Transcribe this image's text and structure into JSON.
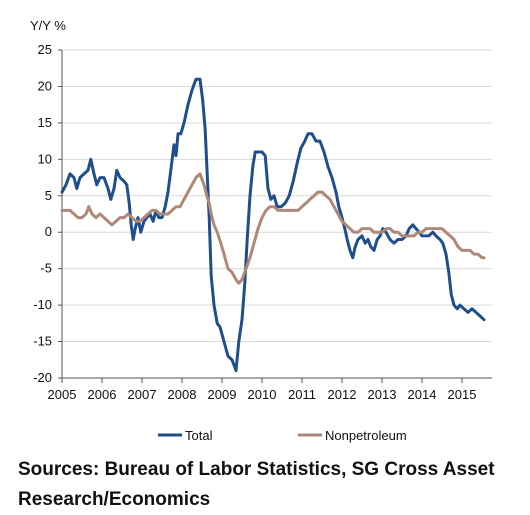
{
  "chart_data": {
    "type": "line",
    "y_unit_label": "Y/Y %",
    "ylim": [
      -20,
      25
    ],
    "y_ticks": [
      25,
      20,
      15,
      10,
      5,
      0,
      -5,
      -10,
      -15,
      -20
    ],
    "x_range": [
      2005,
      2015.75
    ],
    "x_ticks": [
      "2005",
      "2006",
      "2007",
      "2008",
      "2009",
      "2010",
      "2011",
      "2012",
      "2013",
      "2014",
      "2015"
    ],
    "grid": true,
    "legend_position": "bottom",
    "series": [
      {
        "name": "Total",
        "color": "#1f4e8c",
        "points": [
          [
            2005.0,
            5.5
          ],
          [
            2005.1,
            6.5
          ],
          [
            2005.2,
            8.0
          ],
          [
            2005.3,
            7.5
          ],
          [
            2005.37,
            6.0
          ],
          [
            2005.45,
            7.5
          ],
          [
            2005.55,
            8.0
          ],
          [
            2005.65,
            8.5
          ],
          [
            2005.72,
            10.0
          ],
          [
            2005.8,
            8.0
          ],
          [
            2005.87,
            6.5
          ],
          [
            2005.95,
            7.5
          ],
          [
            2006.05,
            7.5
          ],
          [
            2006.15,
            6.0
          ],
          [
            2006.22,
            4.5
          ],
          [
            2006.3,
            6.0
          ],
          [
            2006.37,
            8.5
          ],
          [
            2006.45,
            7.5
          ],
          [
            2006.55,
            7.0
          ],
          [
            2006.62,
            6.5
          ],
          [
            2006.68,
            4.0
          ],
          [
            2006.73,
            1.0
          ],
          [
            2006.78,
            -1.0
          ],
          [
            2006.83,
            0.5
          ],
          [
            2006.9,
            2.0
          ],
          [
            2006.97,
            0.0
          ],
          [
            2007.05,
            1.5
          ],
          [
            2007.12,
            2.0
          ],
          [
            2007.2,
            2.5
          ],
          [
            2007.28,
            1.5
          ],
          [
            2007.35,
            3.0
          ],
          [
            2007.42,
            2.0
          ],
          [
            2007.5,
            2.0
          ],
          [
            2007.58,
            3.5
          ],
          [
            2007.65,
            5.5
          ],
          [
            2007.72,
            8.5
          ],
          [
            2007.8,
            12.0
          ],
          [
            2007.85,
            10.5
          ],
          [
            2007.9,
            13.5
          ],
          [
            2007.97,
            13.5
          ],
          [
            2008.05,
            15.0
          ],
          [
            2008.15,
            17.5
          ],
          [
            2008.25,
            19.5
          ],
          [
            2008.35,
            21.0
          ],
          [
            2008.45,
            21.0
          ],
          [
            2008.52,
            18.0
          ],
          [
            2008.58,
            14.0
          ],
          [
            2008.63,
            8.0
          ],
          [
            2008.68,
            2.0
          ],
          [
            2008.73,
            -6.0
          ],
          [
            2008.8,
            -10.0
          ],
          [
            2008.88,
            -12.5
          ],
          [
            2008.95,
            -13.0
          ],
          [
            2009.05,
            -15.0
          ],
          [
            2009.15,
            -17.0
          ],
          [
            2009.25,
            -17.5
          ],
          [
            2009.32,
            -18.5
          ],
          [
            2009.35,
            -19.0
          ],
          [
            2009.42,
            -15.0
          ],
          [
            2009.5,
            -12.0
          ],
          [
            2009.57,
            -7.0
          ],
          [
            2009.63,
            -1.0
          ],
          [
            2009.7,
            5.0
          ],
          [
            2009.77,
            9.0
          ],
          [
            2009.83,
            11.0
          ],
          [
            2009.92,
            11.0
          ],
          [
            2010.0,
            11.0
          ],
          [
            2010.08,
            10.5
          ],
          [
            2010.15,
            6.0
          ],
          [
            2010.22,
            4.5
          ],
          [
            2010.3,
            5.0
          ],
          [
            2010.38,
            3.5
          ],
          [
            2010.48,
            3.5
          ],
          [
            2010.58,
            4.0
          ],
          [
            2010.68,
            5.0
          ],
          [
            2010.78,
            7.0
          ],
          [
            2010.88,
            9.5
          ],
          [
            2010.97,
            11.5
          ],
          [
            2011.07,
            12.5
          ],
          [
            2011.15,
            13.5
          ],
          [
            2011.25,
            13.5
          ],
          [
            2011.35,
            12.5
          ],
          [
            2011.45,
            12.5
          ],
          [
            2011.55,
            11.0
          ],
          [
            2011.65,
            9.0
          ],
          [
            2011.75,
            7.5
          ],
          [
            2011.85,
            5.5
          ],
          [
            2011.92,
            3.5
          ],
          [
            2012.0,
            2.0
          ],
          [
            2012.07,
            0.5
          ],
          [
            2012.13,
            -1.0
          ],
          [
            2012.2,
            -2.5
          ],
          [
            2012.27,
            -3.5
          ],
          [
            2012.33,
            -2.0
          ],
          [
            2012.4,
            -1.0
          ],
          [
            2012.5,
            -0.5
          ],
          [
            2012.58,
            -1.5
          ],
          [
            2012.65,
            -1.0
          ],
          [
            2012.72,
            -2.0
          ],
          [
            2012.8,
            -2.5
          ],
          [
            2012.88,
            -1.0
          ],
          [
            2012.95,
            -0.5
          ],
          [
            2013.02,
            0.5
          ],
          [
            2013.1,
            0.0
          ],
          [
            2013.2,
            -1.0
          ],
          [
            2013.3,
            -1.5
          ],
          [
            2013.4,
            -1.0
          ],
          [
            2013.5,
            -1.0
          ],
          [
            2013.6,
            -0.5
          ],
          [
            2013.68,
            0.5
          ],
          [
            2013.77,
            1.0
          ],
          [
            2013.85,
            0.5
          ],
          [
            2013.93,
            0.0
          ],
          [
            2014.0,
            -0.5
          ],
          [
            2014.08,
            -0.5
          ],
          [
            2014.17,
            -0.5
          ],
          [
            2014.27,
            0.0
          ],
          [
            2014.35,
            -0.5
          ],
          [
            2014.45,
            -1.0
          ],
          [
            2014.52,
            -1.5
          ],
          [
            2014.6,
            -3.0
          ],
          [
            2014.67,
            -5.5
          ],
          [
            2014.73,
            -8.5
          ],
          [
            2014.8,
            -10.0
          ],
          [
            2014.88,
            -10.5
          ],
          [
            2014.95,
            -10.0
          ],
          [
            2015.05,
            -10.5
          ],
          [
            2015.15,
            -11.0
          ],
          [
            2015.25,
            -10.5
          ],
          [
            2015.35,
            -11.0
          ],
          [
            2015.45,
            -11.5
          ],
          [
            2015.55,
            -12.0
          ]
        ]
      },
      {
        "name": "Nonpetroleum",
        "color": "#b08878",
        "points": [
          [
            2005.0,
            3.0
          ],
          [
            2005.1,
            3.0
          ],
          [
            2005.2,
            3.0
          ],
          [
            2005.3,
            2.5
          ],
          [
            2005.4,
            2.0
          ],
          [
            2005.5,
            2.0
          ],
          [
            2005.6,
            2.5
          ],
          [
            2005.67,
            3.5
          ],
          [
            2005.75,
            2.5
          ],
          [
            2005.85,
            2.0
          ],
          [
            2005.95,
            2.5
          ],
          [
            2006.05,
            2.0
          ],
          [
            2006.15,
            1.5
          ],
          [
            2006.25,
            1.0
          ],
          [
            2006.35,
            1.5
          ],
          [
            2006.45,
            2.0
          ],
          [
            2006.55,
            2.0
          ],
          [
            2006.65,
            2.5
          ],
          [
            2006.75,
            2.0
          ],
          [
            2006.85,
            1.5
          ],
          [
            2006.95,
            1.5
          ],
          [
            2007.05,
            2.0
          ],
          [
            2007.15,
            2.5
          ],
          [
            2007.25,
            3.0
          ],
          [
            2007.35,
            3.0
          ],
          [
            2007.45,
            2.5
          ],
          [
            2007.55,
            2.5
          ],
          [
            2007.65,
            2.5
          ],
          [
            2007.75,
            3.0
          ],
          [
            2007.85,
            3.5
          ],
          [
            2007.95,
            3.5
          ],
          [
            2008.05,
            4.5
          ],
          [
            2008.15,
            5.5
          ],
          [
            2008.25,
            6.5
          ],
          [
            2008.35,
            7.5
          ],
          [
            2008.45,
            8.0
          ],
          [
            2008.55,
            6.5
          ],
          [
            2008.62,
            5.0
          ],
          [
            2008.68,
            4.0
          ],
          [
            2008.73,
            2.5
          ],
          [
            2008.8,
            1.0
          ],
          [
            2008.88,
            0.0
          ],
          [
            2008.97,
            -1.5
          ],
          [
            2009.05,
            -3.0
          ],
          [
            2009.15,
            -5.0
          ],
          [
            2009.25,
            -5.5
          ],
          [
            2009.35,
            -6.5
          ],
          [
            2009.42,
            -7.0
          ],
          [
            2009.5,
            -6.5
          ],
          [
            2009.6,
            -5.0
          ],
          [
            2009.7,
            -3.5
          ],
          [
            2009.8,
            -1.5
          ],
          [
            2009.9,
            0.5
          ],
          [
            2010.0,
            2.0
          ],
          [
            2010.1,
            3.0
          ],
          [
            2010.2,
            3.5
          ],
          [
            2010.3,
            3.5
          ],
          [
            2010.4,
            3.0
          ],
          [
            2010.5,
            3.0
          ],
          [
            2010.6,
            3.0
          ],
          [
            2010.7,
            3.0
          ],
          [
            2010.8,
            3.0
          ],
          [
            2010.9,
            3.0
          ],
          [
            2011.0,
            3.5
          ],
          [
            2011.1,
            4.0
          ],
          [
            2011.2,
            4.5
          ],
          [
            2011.3,
            5.0
          ],
          [
            2011.4,
            5.5
          ],
          [
            2011.5,
            5.5
          ],
          [
            2011.6,
            5.0
          ],
          [
            2011.7,
            4.5
          ],
          [
            2011.8,
            3.5
          ],
          [
            2011.9,
            2.5
          ],
          [
            2012.0,
            1.5
          ],
          [
            2012.1,
            1.0
          ],
          [
            2012.2,
            0.5
          ],
          [
            2012.3,
            0.0
          ],
          [
            2012.4,
            0.0
          ],
          [
            2012.5,
            0.5
          ],
          [
            2012.6,
            0.5
          ],
          [
            2012.7,
            0.5
          ],
          [
            2012.8,
            0.0
          ],
          [
            2012.9,
            0.0
          ],
          [
            2013.0,
            0.0
          ],
          [
            2013.1,
            0.5
          ],
          [
            2013.2,
            0.5
          ],
          [
            2013.3,
            0.0
          ],
          [
            2013.4,
            0.0
          ],
          [
            2013.5,
            -0.5
          ],
          [
            2013.6,
            -0.5
          ],
          [
            2013.7,
            -0.5
          ],
          [
            2013.8,
            -0.5
          ],
          [
            2013.9,
            0.0
          ],
          [
            2014.0,
            0.0
          ],
          [
            2014.1,
            0.5
          ],
          [
            2014.2,
            0.5
          ],
          [
            2014.3,
            0.5
          ],
          [
            2014.4,
            0.5
          ],
          [
            2014.5,
            0.5
          ],
          [
            2014.6,
            0.0
          ],
          [
            2014.7,
            -0.5
          ],
          [
            2014.8,
            -1.0
          ],
          [
            2014.9,
            -2.0
          ],
          [
            2015.0,
            -2.5
          ],
          [
            2015.1,
            -2.5
          ],
          [
            2015.2,
            -2.5
          ],
          [
            2015.3,
            -3.0
          ],
          [
            2015.4,
            -3.0
          ],
          [
            2015.5,
            -3.5
          ],
          [
            2015.55,
            -3.5
          ]
        ]
      }
    ]
  },
  "sources_text": "Sources: Bureau of Labor Statistics, SG Cross Asset Research/Economics"
}
